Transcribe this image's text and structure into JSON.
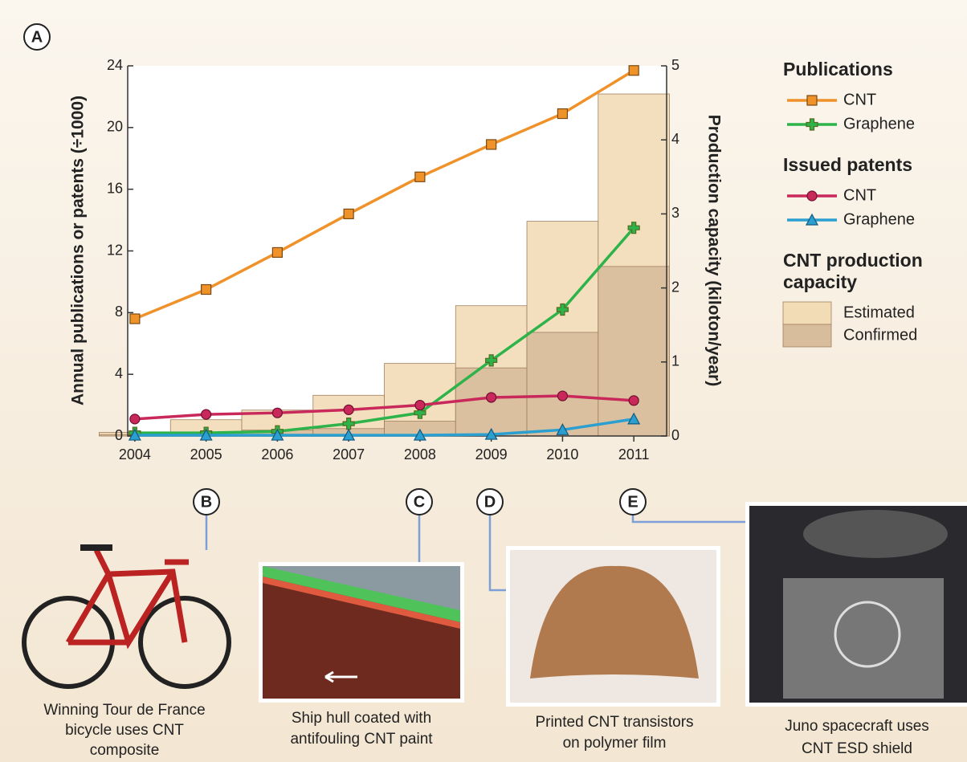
{
  "chart_data": {
    "type": "combo",
    "panel_label": "A",
    "ylabel": "Annual publications or patents (÷1000)",
    "y2label": "Production capacity (kiloton/year)",
    "x": [
      2004,
      2005,
      2006,
      2007,
      2008,
      2009,
      2010,
      2011
    ],
    "xlim": [
      2003.9,
      2011.46
    ],
    "xticks": [
      2004,
      2005,
      2006,
      2007,
      2008,
      2009,
      2010,
      2011
    ],
    "ylim": [
      0,
      24
    ],
    "yticks": [
      0,
      4,
      8,
      12,
      16,
      20,
      24
    ],
    "y2lim": [
      0,
      5
    ],
    "y2ticks": [
      0,
      1,
      2,
      3,
      4,
      5
    ],
    "groups": [
      {
        "title": [
          "Publications"
        ],
        "series": [
          {
            "name": "CNT",
            "type": "line",
            "marker": "square",
            "color": "#f0922a",
            "values": [
              7.6,
              9.5,
              11.9,
              14.4,
              16.8,
              18.9,
              20.9,
              23.7
            ]
          },
          {
            "name": "Graphene",
            "type": "line",
            "marker": "plus",
            "color": "#2db34a",
            "values": [
              0.2,
              0.2,
              0.3,
              0.8,
              1.5,
              4.9,
              8.2,
              13.5
            ]
          }
        ]
      },
      {
        "title": [
          "Issued patents"
        ],
        "series": [
          {
            "name": "CNT",
            "type": "line",
            "marker": "circle",
            "color": "#c8285a",
            "values": [
              1.1,
              1.4,
              1.5,
              1.7,
              2.0,
              2.5,
              2.6,
              2.3
            ]
          },
          {
            "name": "Graphene",
            "type": "line",
            "marker": "triangle",
            "color": "#2a9fd0",
            "values": [
              0.05,
              0.05,
              0.05,
              0.05,
              0.05,
              0.1,
              0.4,
              1.1
            ]
          }
        ]
      },
      {
        "title": [
          "CNT production",
          "capacity"
        ],
        "series": [
          {
            "name": "Estimated",
            "type": "bar",
            "axis": "y2",
            "color": "#f2dcb6",
            "values": [
              0.05,
              0.22,
              0.35,
              0.55,
              0.98,
              1.76,
              2.9,
              4.62
            ]
          },
          {
            "name": "Confirmed",
            "type": "bar",
            "axis": "y2",
            "color": "#d8bd9c",
            "values": [
              0.02,
              0.05,
              0.08,
              0.1,
              0.2,
              0.92,
              1.4,
              2.29
            ]
          }
        ]
      }
    ]
  },
  "panels": [
    {
      "letter": "B",
      "caption": [
        "Winning Tour de France",
        "bicycle uses CNT",
        "composite"
      ]
    },
    {
      "letter": "C",
      "caption": [
        "Ship hull coated with",
        "antifouling CNT paint"
      ]
    },
    {
      "letter": "D",
      "caption": [
        "Printed CNT transistors",
        "on polymer film"
      ]
    },
    {
      "letter": "E",
      "caption": [
        "Juno spacecraft uses",
        "CNT ESD shield"
      ]
    }
  ]
}
